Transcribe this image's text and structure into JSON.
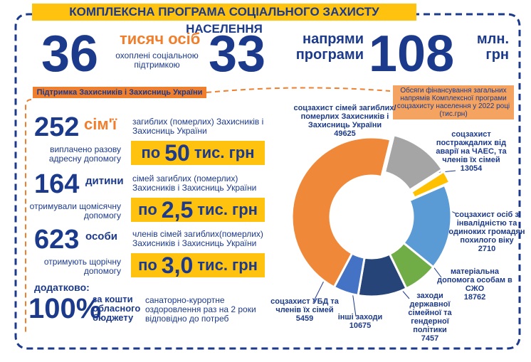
{
  "header": {
    "title": "КОМПЛЕКСНА ПРОГРАМА СОЦІАЛЬНОГО ЗАХИСТУ НАСЕЛЕННЯ"
  },
  "stats": [
    {
      "number": 36,
      "unit": "тисяч осіб",
      "note": "охоплені соціальною підтримкою"
    },
    {
      "number": 33,
      "unit": "напрями програми"
    },
    {
      "number": 108,
      "unit": "млн. грн"
    }
  ],
  "section": {
    "title": "Підтримка Захисників і Захисниць України",
    "items": [
      {
        "number": 252,
        "unit": "сім'ї",
        "note": "виплачено разову адресну допомогу",
        "recipients": "загиблих (померлих) Захисників і Захисниць України",
        "amount_prefix": "по",
        "amount": "50",
        "amount_unit": "тис. грн"
      },
      {
        "number": 164,
        "unit": "дитини",
        "note": "отримували щомісячну допомогу",
        "recipients": "сімей загиблих (померлих) Захисників і Захисниць України",
        "amount_prefix": "по",
        "amount": "2,5",
        "amount_unit": "тис. грн"
      },
      {
        "number": 623,
        "unit": "особи",
        "note": "отримують щорічну допомогу",
        "recipients": "членів сімей загиблих(померлих) Захисників і Захисниць України",
        "amount_prefix": "по",
        "amount": "3,0",
        "amount_unit": "тис. грн"
      }
    ]
  },
  "additional": {
    "title": "додатково:",
    "number": "100%",
    "source": "за кошти обласного бюджету",
    "text": "санаторно-курортне оздоровлення раз на 2 роки відповідно до потреб"
  },
  "chart_data": {
    "type": "donut",
    "title": "Обсяги фінансування загальних напрямів Комплексної програми соцзахисту населення у 2022 році (тис.грн)",
    "categories": [
      "соцзахист сімей загиблих/померлих Захисників і Захисниць України",
      "соцзахист постраждалих від аварії на ЧАЕС, та членів їх сімей",
      "соцзахист осіб з інвалідністю та одиноких громадян похилого віку",
      "матеріальна допомога особам в СЖО",
      "заходи державної сімейної та гендерної політики",
      "інші заходи",
      "соцзахист УБД та членів їх сімей"
    ],
    "values": [
      49625,
      13054,
      2710,
      18762,
      7457,
      10675,
      5459
    ],
    "colors": [
      "#f0883a",
      "#a5a5a5",
      "#ffc000",
      "#5b9bd5",
      "#70ad47",
      "#264478",
      "#4472c4"
    ]
  }
}
